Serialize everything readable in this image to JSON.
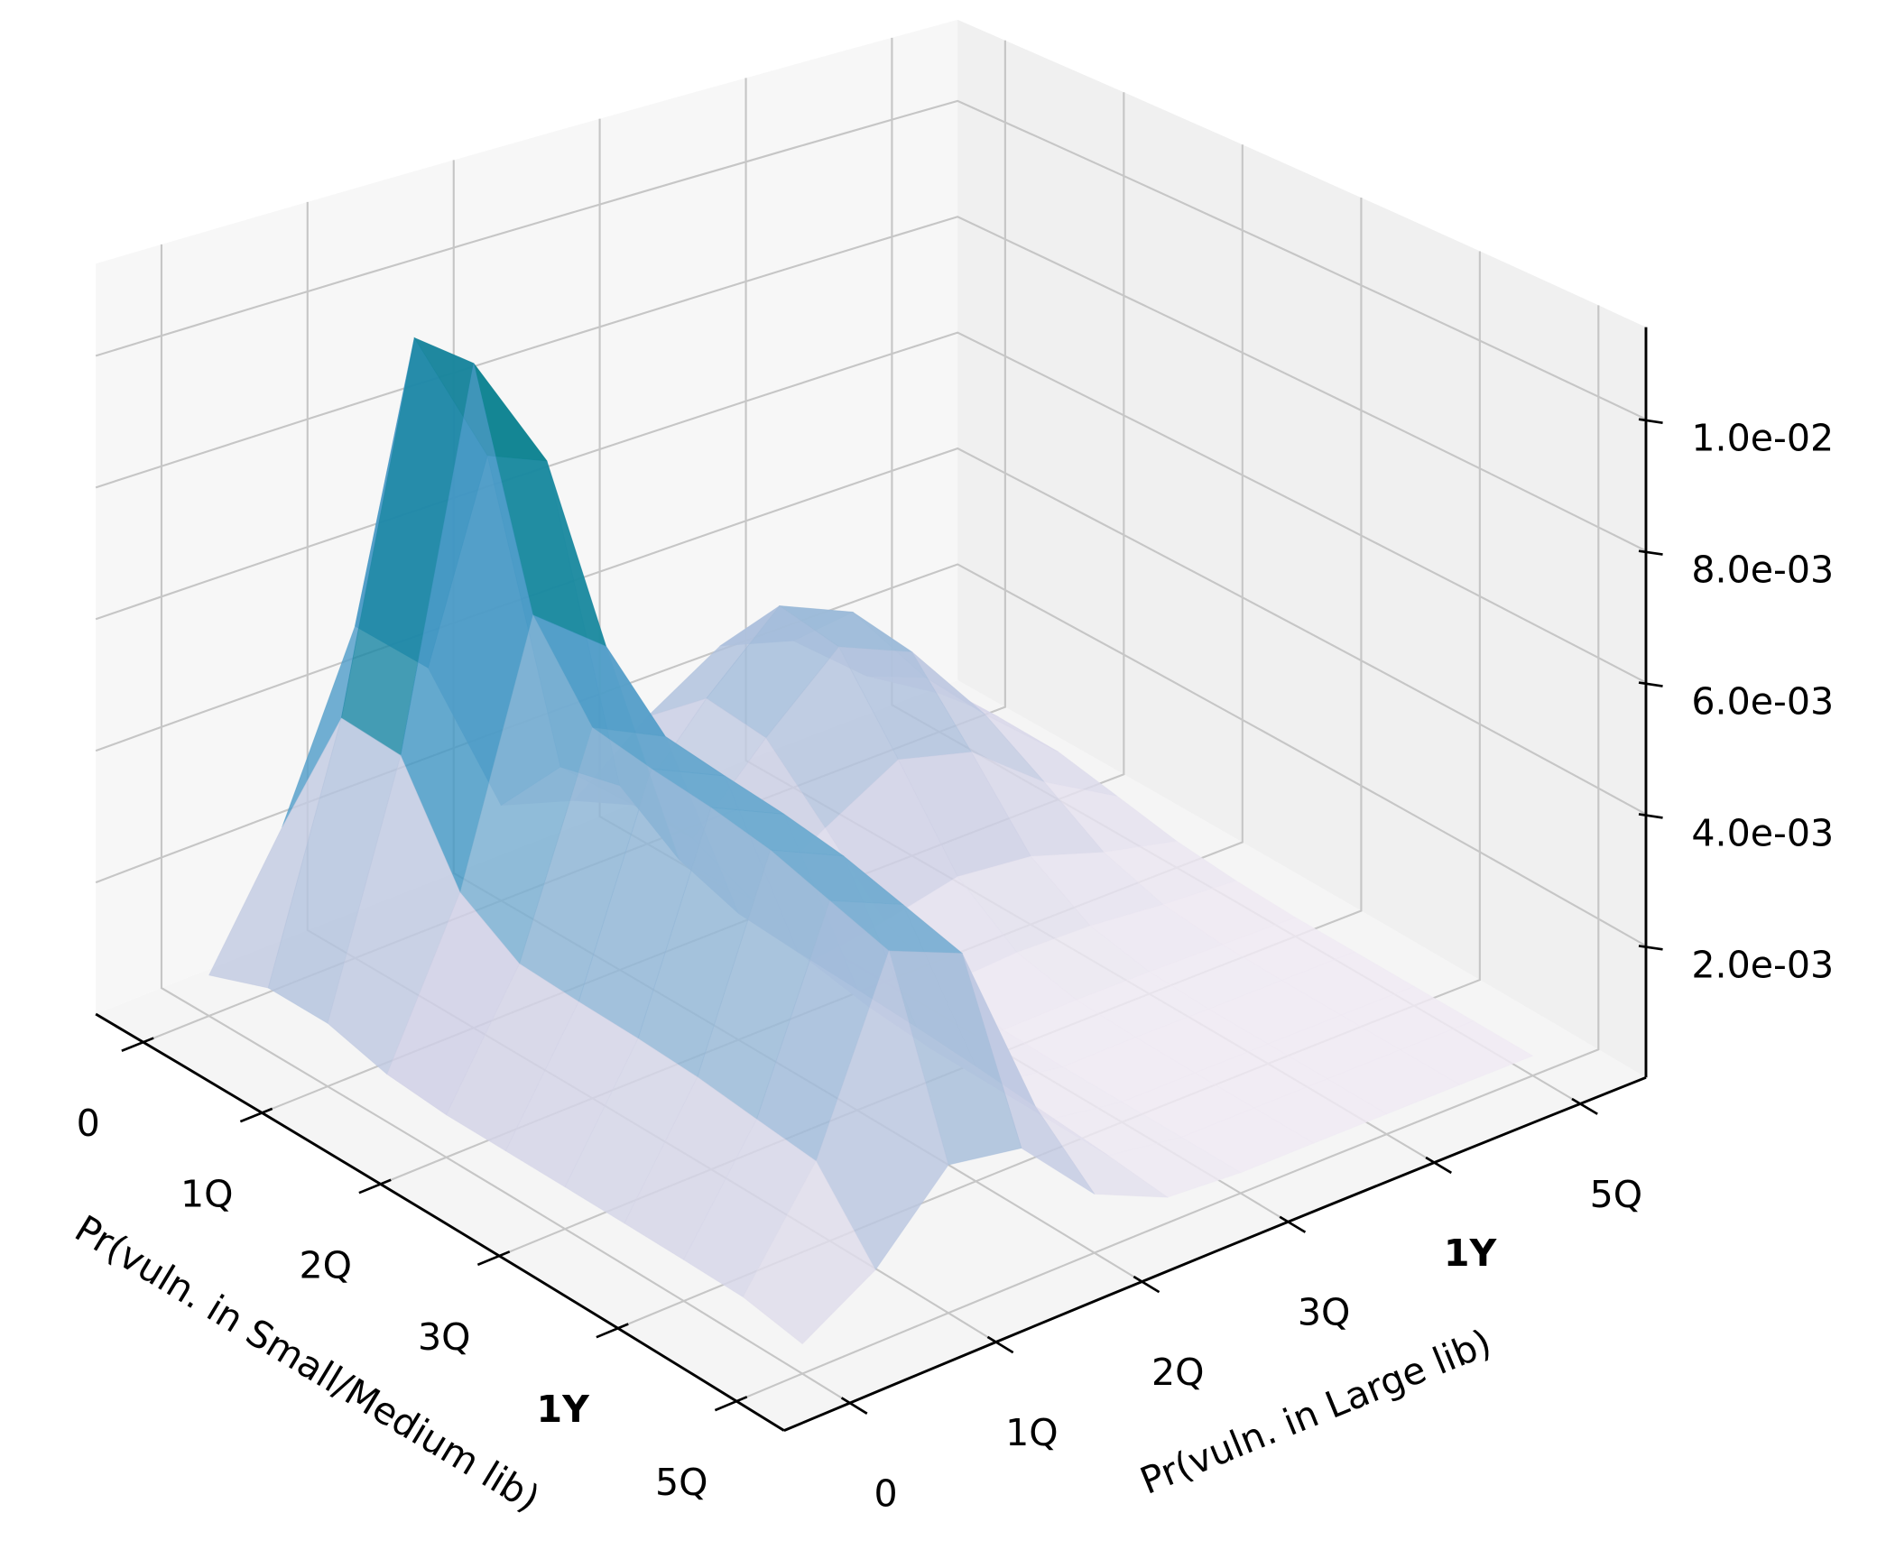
{
  "chart_data": {
    "type": "surface3d",
    "x_label": "Pr(vuln. in Small/Medium lib)",
    "y_label": "Pr(vuln. in Large lib)",
    "xlim": [
      -0.4,
      5.4
    ],
    "ylim": [
      -0.45,
      5.45
    ],
    "zlim": [
      0,
      0.0114
    ],
    "xticks": [
      0,
      {
        "value": 1,
        "label": "1Q"
      },
      {
        "value": 2,
        "label": "2Q"
      },
      {
        "value": 3,
        "label": "3Q"
      },
      {
        "value": 4,
        "label": "1Y",
        "bold": true
      },
      {
        "value": 5,
        "label": "5Q"
      }
    ],
    "yticks": [
      0,
      {
        "value": 1,
        "label": "1Q"
      },
      {
        "value": 2,
        "label": "2Q"
      },
      {
        "value": 3,
        "label": "3Q"
      },
      {
        "value": 4,
        "label": "1Y",
        "bold": true
      },
      {
        "value": 5,
        "label": "5Q"
      }
    ],
    "zticks": [
      {
        "value": 0.002,
        "label": "2.0e-03"
      },
      {
        "value": 0.004,
        "label": "4.0e-03"
      },
      {
        "value": 0.006,
        "label": "6.0e-03"
      },
      {
        "value": 0.008,
        "label": "8.0e-03"
      },
      {
        "value": 0.01,
        "label": "1.0e-02"
      }
    ],
    "grid": true,
    "colormap": [
      "#f7f0f7",
      "#d0d1e6",
      "#a6bddb",
      "#67a9cf",
      "#3690c0",
      "#02818a",
      "#016c59",
      "#014636"
    ],
    "x": [
      0,
      0.5,
      1,
      1.5,
      2,
      2.5,
      3,
      3.5,
      4,
      4.5,
      5
    ],
    "y": [
      0,
      0.5,
      1,
      1.5,
      2,
      2.5,
      3,
      3.5,
      4,
      4.5,
      5
    ],
    "z": [
      [
        0.00062,
        0.00095,
        0.00094,
        0.0007,
        0.00062,
        0.00061,
        0.0006,
        0.00059,
        0.00058,
        0.00056,
        0.00041
      ],
      [
        0.00245,
        0.00462,
        0.00454,
        0.00298,
        0.00242,
        0.00236,
        0.00232,
        0.00226,
        0.00215,
        0.00205,
        0.00102
      ],
      [
        0.00515,
        0.01006,
        0.0101,
        0.00674,
        0.00552,
        0.00538,
        0.00528,
        0.00513,
        0.00487,
        0.00462,
        0.00208
      ],
      [
        0.0041,
        0.00789,
        0.00826,
        0.00589,
        0.005,
        0.00489,
        0.0048,
        0.00466,
        0.00443,
        0.0042,
        0.00191
      ],
      [
        0.00151,
        0.00264,
        0.00286,
        0.00223,
        0.00192,
        0.00185,
        0.0018,
        0.00175,
        0.00168,
        0.0016,
        0.00084
      ],
      [
        0.00115,
        0.00161,
        0.00161,
        0.00118,
        0.00076,
        0.00057,
        0.00049,
        0.00048,
        0.00047,
        0.00046,
        0.00037
      ],
      [
        0.00206,
        0.00288,
        0.00277,
        0.00187,
        0.00094,
        0.00048,
        0.00033,
        0.0003,
        0.0003,
        0.0003,
        0.0003
      ],
      [
        0.00278,
        0.00395,
        0.0038,
        0.00252,
        0.0012,
        0.00055,
        0.00035,
        0.00031,
        0.0003,
        0.0003,
        0.0003
      ],
      [
        0.00243,
        0.00343,
        0.0033,
        0.00221,
        0.00108,
        0.00052,
        0.00034,
        0.0003,
        0.0003,
        0.0003,
        0.0003
      ],
      [
        0.0014,
        0.00192,
        0.00185,
        0.00129,
        0.0007,
        0.00041,
        0.00032,
        0.0003,
        0.0003,
        0.0003,
        0.0003
      ],
      [
        0.00065,
        0.00081,
        0.00079,
        0.00061,
        0.00043,
        0.00034,
        0.0003,
        0.0003,
        0.0003,
        0.0003,
        0.0003
      ]
    ]
  }
}
